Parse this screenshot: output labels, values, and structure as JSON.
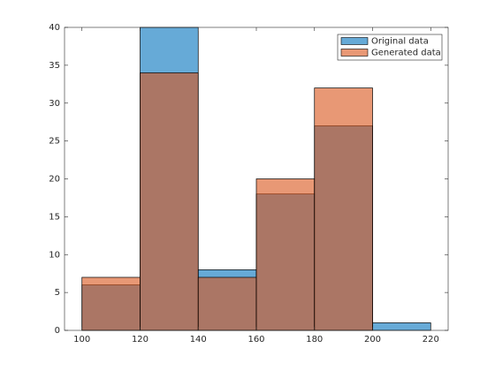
{
  "chart_data": {
    "type": "histogram",
    "bins": [
      100,
      120,
      140,
      160,
      180,
      200,
      220
    ],
    "series": [
      {
        "name": "Original data",
        "color": "#0072BD",
        "values": [
          6,
          40,
          8,
          18,
          27,
          1
        ]
      },
      {
        "name": "Generated data",
        "color": "#D95319",
        "values": [
          7,
          34,
          7,
          20,
          32,
          0
        ]
      }
    ],
    "xlim": [
      94,
      226
    ],
    "xticks": [
      100,
      120,
      140,
      160,
      180,
      200,
      220
    ],
    "ylim": [
      0,
      40
    ],
    "yticks": [
      0,
      5,
      10,
      15,
      20,
      25,
      30,
      35,
      40
    ],
    "grid": false,
    "legend": "northeast"
  }
}
